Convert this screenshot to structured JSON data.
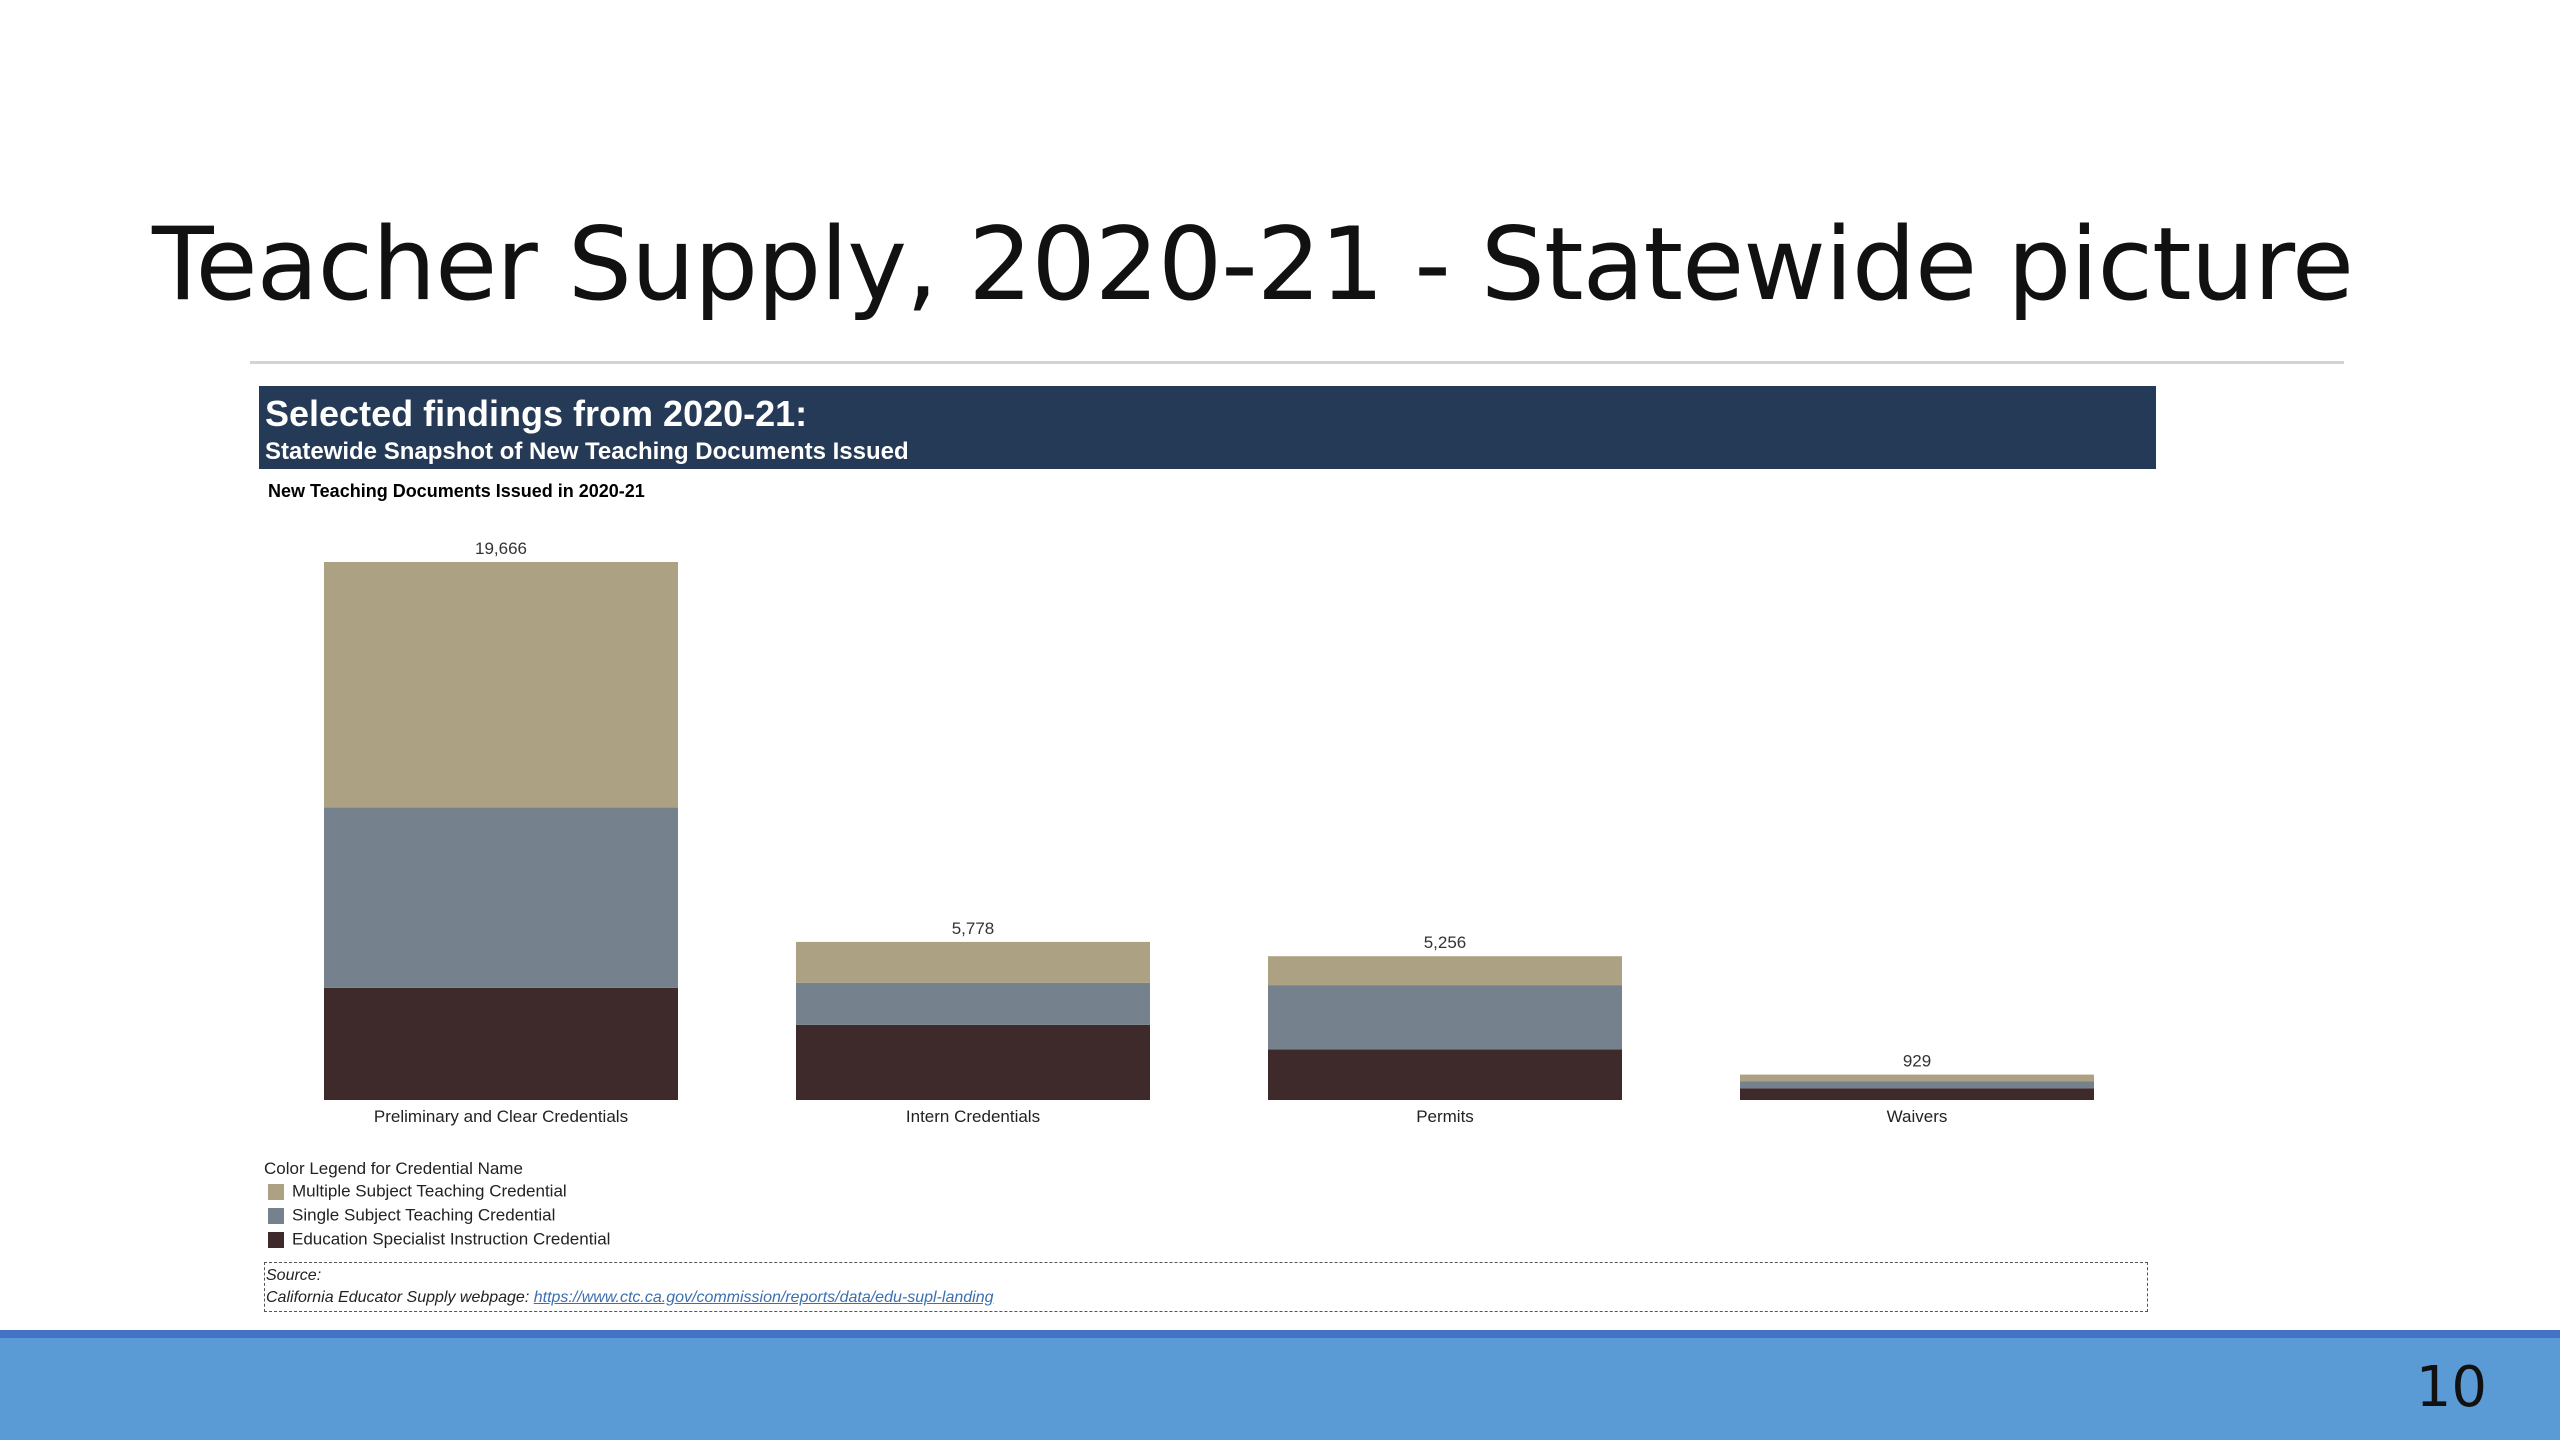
{
  "slide": {
    "title": "Teacher Supply, 2020-21 - Statewide picture",
    "page_number": "10"
  },
  "banner": {
    "heading": "Selected findings from 2020-21:",
    "subheading": "Statewide Snapshot of New Teaching Documents Issued"
  },
  "legend": {
    "title": "Color Legend for Credential Name",
    "items": [
      {
        "label": "Multiple Subject Teaching Credential",
        "color": "#aca183"
      },
      {
        "label": "Single Subject Teaching Credential",
        "color": "#75828e"
      },
      {
        "label": "Education Specialist Instruction Credential",
        "color": "#3f2a2b"
      }
    ]
  },
  "source": {
    "label": "Source:",
    "prefix": "California Educator Supply webpage: ",
    "link_text": "https://www.ctc.ca.gov/commission/reports/data/edu-supl-landing"
  },
  "colors": {
    "banner": "#253a56",
    "footer_bar": "#5b9bd5",
    "footer_line": "#4472c4"
  },
  "chart_data": {
    "type": "bar",
    "stacked": true,
    "title": "New Teaching Documents Issued in 2020-21",
    "categories": [
      "Preliminary and Clear Credentials",
      "Intern Credentials",
      "Permits",
      "Waivers"
    ],
    "totals": [
      19666,
      5778,
      5256,
      929
    ],
    "total_labels": [
      "19,666",
      "5,778",
      "5,256",
      "929"
    ],
    "series": [
      {
        "name": "Education Specialist Instruction Credential",
        "color": "#3f2a2b",
        "values": [
          4100,
          2750,
          1850,
          430
        ]
      },
      {
        "name": "Single Subject Teaching Credential",
        "color": "#75828e",
        "values": [
          6600,
          1530,
          2350,
          260
        ]
      },
      {
        "name": "Multiple Subject Teaching Credential",
        "color": "#aca183",
        "values": [
          8966,
          1498,
          1056,
          239
        ]
      }
    ],
    "ylim": [
      0,
      19666
    ],
    "grid": false,
    "legend_position": "bottom-left"
  }
}
